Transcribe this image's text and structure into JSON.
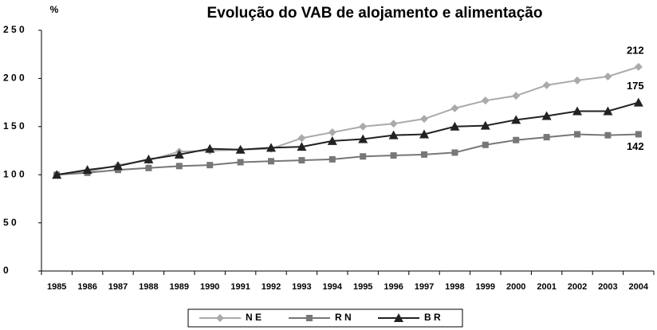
{
  "chart_data": {
    "type": "line",
    "title": "Evolução do VAB de alojamento e alimentação",
    "y_label": "%",
    "categories": [
      "1985",
      "1986",
      "1987",
      "1988",
      "1989",
      "1990",
      "1991",
      "1992",
      "1993",
      "1994",
      "1995",
      "1996",
      "1997",
      "1998",
      "1999",
      "2000",
      "2001",
      "2002",
      "2003",
      "2004"
    ],
    "series": [
      {
        "name": "N E",
        "color": "#aaaaaa",
        "marker": "diamond",
        "values": [
          100,
          103,
          110,
          115,
          124,
          125,
          126,
          127,
          138,
          144,
          150,
          153,
          158,
          169,
          177,
          182,
          193,
          198,
          202,
          212
        ]
      },
      {
        "name": "R N",
        "color": "#777777",
        "marker": "square",
        "values": [
          100,
          102,
          105,
          107,
          109,
          110,
          113,
          114,
          115,
          116,
          119,
          120,
          121,
          123,
          131,
          136,
          139,
          142,
          141,
          142
        ]
      },
      {
        "name": "B R",
        "color": "#222222",
        "marker": "triangle",
        "values": [
          100,
          105,
          109,
          116,
          121,
          127,
          126,
          128,
          129,
          135,
          137,
          141,
          142,
          150,
          151,
          157,
          161,
          166,
          166,
          175
        ]
      }
    ],
    "ylim": [
      0,
      250
    ],
    "yticks": [
      {
        "value": 0,
        "label": "0"
      },
      {
        "value": 50,
        "label": "5 0"
      },
      {
        "value": 100,
        "label": "1 0 0"
      },
      {
        "value": 150,
        "label": "1 5 0"
      },
      {
        "value": 200,
        "label": "2 0 0"
      },
      {
        "value": 250,
        "label": "2 5 0"
      }
    ],
    "grid": false
  }
}
